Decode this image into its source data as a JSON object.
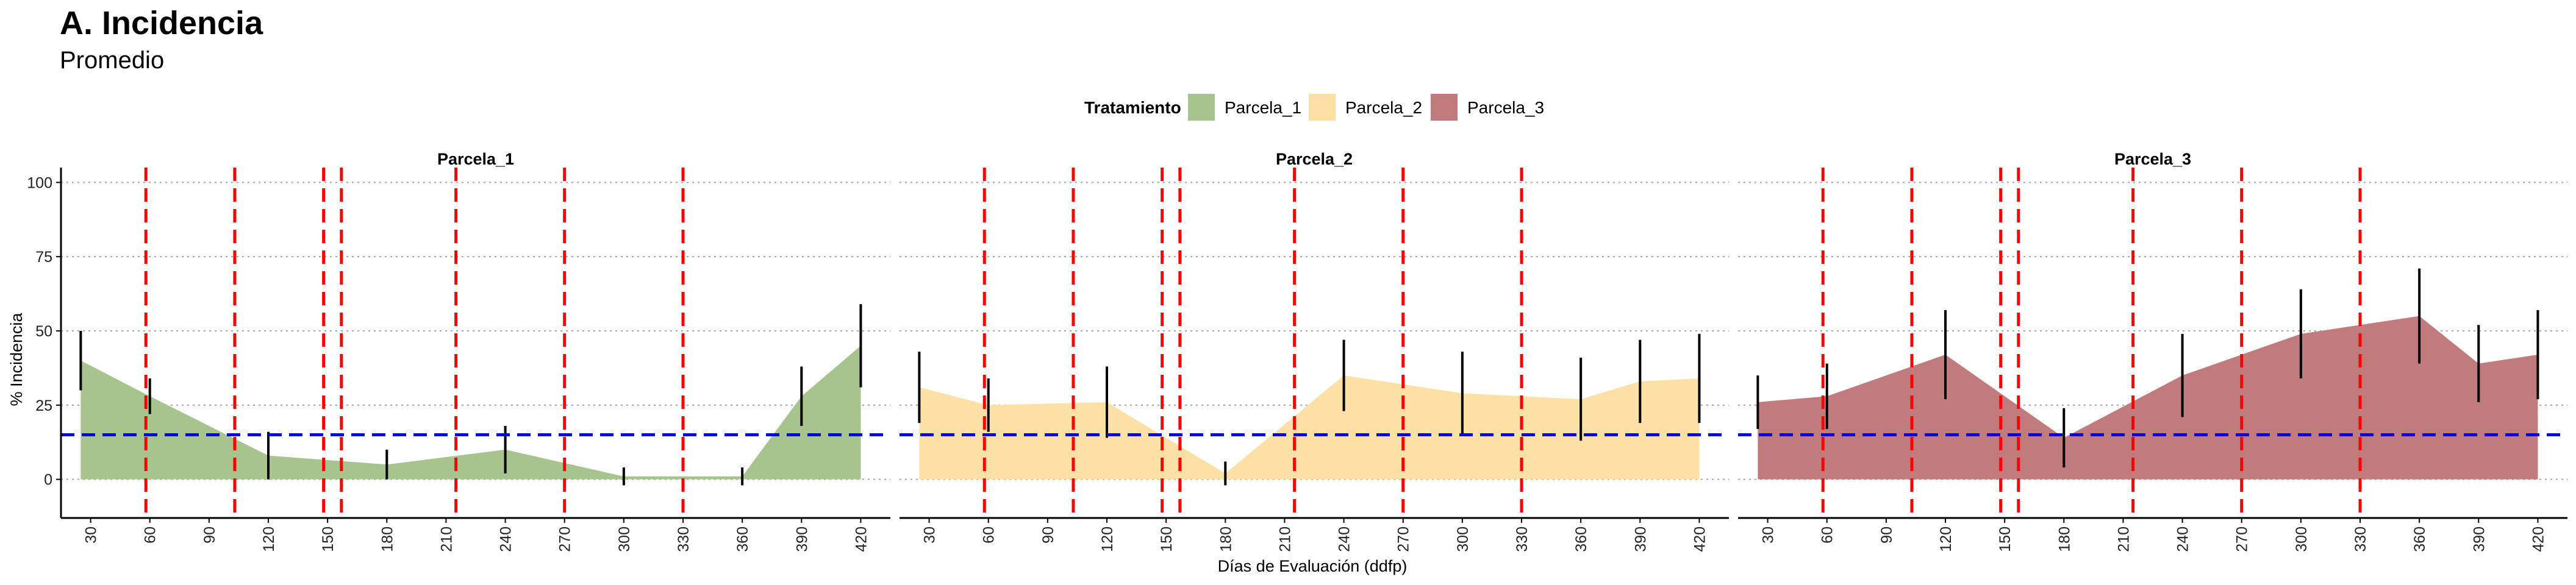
{
  "title": "A. Incidencia",
  "subtitle": "Promedio",
  "legend": {
    "title": "Tratamiento",
    "position": "top",
    "items": [
      {
        "label": "Parcela_1",
        "color": "#a8c48e"
      },
      {
        "label": "Parcela_2",
        "color": "#fde0a5"
      },
      {
        "label": "Parcela_3",
        "color": "#c17b7d"
      }
    ]
  },
  "chart_data": {
    "type": "area",
    "title": "A. Incidencia",
    "subtitle": "Promedio",
    "xlabel": "Días de Evaluación (ddfp)",
    "ylabel": "% Incidencia",
    "xlim": [
      15,
      435
    ],
    "ylim": [
      -13,
      105
    ],
    "xticks": [
      "30",
      "60",
      "90",
      "120",
      "150",
      "180",
      "210",
      "240",
      "270",
      "300",
      "330",
      "360",
      "390",
      "420"
    ],
    "xtick_values": [
      30,
      60,
      90,
      120,
      150,
      180,
      210,
      240,
      270,
      300,
      330,
      360,
      390,
      420
    ],
    "yticks": [
      "0",
      "25",
      "50",
      "75",
      "100"
    ],
    "ytick_values": [
      0,
      25,
      50,
      75,
      100
    ],
    "grid": "horizontal dotted",
    "threshold_line": {
      "y": 15,
      "color": "#0000ff",
      "style": "dashed"
    },
    "event_lines": {
      "x": [
        58,
        103,
        148,
        157,
        215,
        270,
        330
      ],
      "color": "#ff0000",
      "style": "dashed"
    },
    "x": [
      25,
      60,
      120,
      180,
      240,
      300,
      360,
      390,
      420
    ],
    "series": [
      {
        "name": "Parcela_1",
        "color": "#a8c48e",
        "values": [
          40,
          28,
          8,
          5,
          10,
          1,
          1,
          28,
          45
        ],
        "errors": [
          10,
          6,
          8,
          5,
          8,
          3,
          3,
          10,
          14
        ]
      },
      {
        "name": "Parcela_2",
        "color": "#fde0a5",
        "values": [
          31,
          25,
          26,
          2,
          35,
          29,
          27,
          33,
          34
        ],
        "errors": [
          12,
          9,
          12,
          4,
          12,
          14,
          14,
          14,
          15
        ]
      },
      {
        "name": "Parcela_3",
        "color": "#c17b7d",
        "values": [
          26,
          28,
          42,
          14,
          35,
          49,
          55,
          39,
          42
        ],
        "errors": [
          9,
          11,
          15,
          10,
          14,
          15,
          16,
          13,
          15
        ]
      }
    ]
  }
}
